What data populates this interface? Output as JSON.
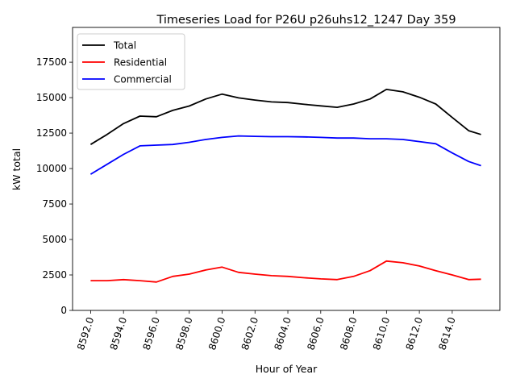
{
  "chart_data": {
    "type": "line",
    "title": "Timeseries Load for P26U p26uhs12_1247  Day 359",
    "xlabel": "Hour of Year",
    "ylabel": "kW total",
    "xlim": [
      8590.9,
      8616.9
    ],
    "ylim": [
      0,
      19950
    ],
    "grid": false,
    "legend_position": "top-left",
    "xticks": [
      8592,
      8594,
      8596,
      8598,
      8600,
      8602,
      8604,
      8606,
      8608,
      8610,
      8612,
      8614
    ],
    "xtick_labels": [
      "8592.0",
      "8594.0",
      "8596.0",
      "8598.0",
      "8600.0",
      "8602.0",
      "8604.0",
      "8606.0",
      "8608.0",
      "8610.0",
      "8612.0",
      "8614.0"
    ],
    "yticks": [
      0,
      2500,
      5000,
      7500,
      10000,
      12500,
      15000,
      17500
    ],
    "ytick_labels": [
      "0",
      "2500",
      "5000",
      "7500",
      "10000",
      "12500",
      "15000",
      "17500"
    ],
    "x": [
      8592,
      8593,
      8594,
      8595,
      8596,
      8597,
      8598,
      8599,
      8600,
      8601,
      8602,
      8603,
      8604,
      8605,
      8606,
      8607,
      8608,
      8609,
      8610,
      8611,
      8612,
      8613,
      8614,
      8615,
      8615.75
    ],
    "series": [
      {
        "name": "Total",
        "color": "#000000",
        "values": [
          11700,
          12400,
          13170,
          13700,
          13650,
          14100,
          14410,
          14900,
          15250,
          14980,
          14830,
          14700,
          14650,
          14530,
          14420,
          14320,
          14550,
          14900,
          15580,
          15410,
          15030,
          14550,
          13600,
          12670,
          12400
        ]
      },
      {
        "name": "Residential",
        "color": "#ff0000",
        "values": [
          2100,
          2100,
          2170,
          2100,
          2000,
          2400,
          2560,
          2850,
          3050,
          2680,
          2560,
          2450,
          2400,
          2300,
          2220,
          2170,
          2400,
          2800,
          3480,
          3360,
          3130,
          2800,
          2500,
          2170,
          2200
        ]
      },
      {
        "name": "Commercial",
        "color": "#0000ff",
        "values": [
          9600,
          10300,
          11000,
          11600,
          11650,
          11700,
          11850,
          12050,
          12200,
          12300,
          12270,
          12250,
          12250,
          12230,
          12200,
          12150,
          12150,
          12100,
          12100,
          12050,
          11900,
          11750,
          11100,
          10500,
          10200
        ]
      }
    ]
  }
}
